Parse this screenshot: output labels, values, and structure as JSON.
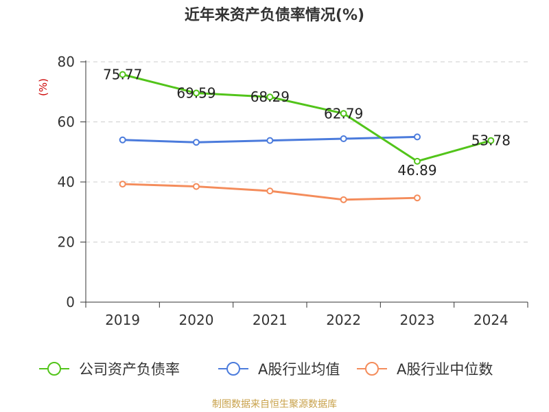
{
  "title": "近年来资产负债率情况(%)",
  "source": "制图数据来自恒生聚源数据库",
  "chart_data": {
    "type": "line",
    "title": "近年来资产负债率情况(%)",
    "ylabel": "(%)",
    "xlabel": "",
    "categories": [
      "2019",
      "2020",
      "2021",
      "2022",
      "2023",
      "2024"
    ],
    "ylim": [
      0,
      80
    ],
    "yticks": [
      0,
      20,
      40,
      60,
      80
    ],
    "grid": true,
    "legend_position": "bottom",
    "series": [
      {
        "name": "公司资产负债率",
        "color": "#52c41a",
        "values": [
          75.77,
          69.59,
          68.29,
          62.79,
          46.89,
          53.78
        ],
        "show_labels": true
      },
      {
        "name": "A股行业均值",
        "color": "#4b7bdc",
        "values": [
          54.0,
          53.2,
          53.8,
          54.4,
          55.0,
          null
        ],
        "show_labels": false
      },
      {
        "name": "A股行业中位数",
        "color": "#f48c5b",
        "values": [
          39.3,
          38.5,
          37.0,
          34.1,
          34.7,
          null
        ],
        "show_labels": false
      }
    ]
  }
}
